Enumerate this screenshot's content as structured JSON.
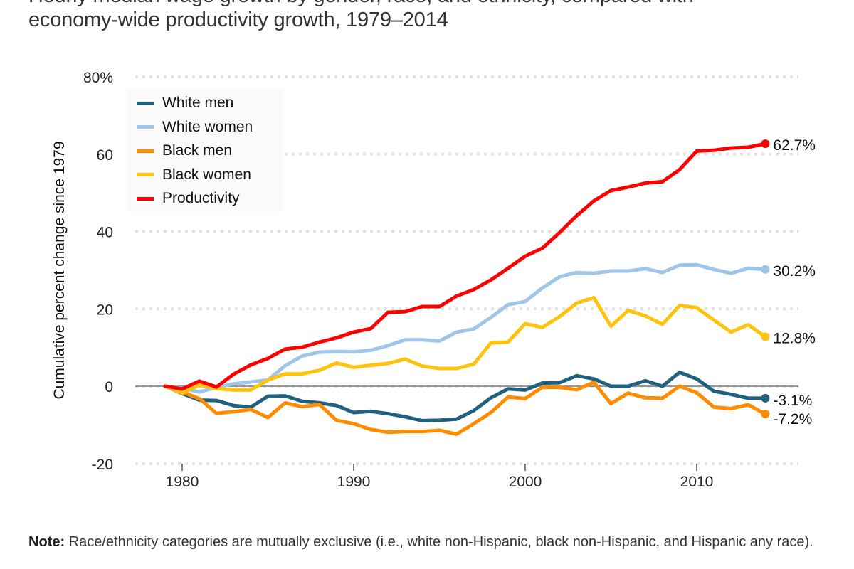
{
  "title": {
    "line1": "Hourly median wage growth by gender, race, and ethnicity, compared with",
    "line2": "economy-wide productivity growth, 1979–2014"
  },
  "note": {
    "label": "Note:",
    "text": " Race/ethnicity categories are mutually exclusive (i.e., white non-Hispanic, black non-Hispanic, and Hispanic any race)."
  },
  "chart_data": {
    "type": "line",
    "title": "Hourly median wage growth by gender, race, and ethnicity, compared with economy-wide productivity growth, 1979–2014",
    "xlabel": "",
    "ylabel": "Cumulative percent change since 1979",
    "xlim": [
      1977,
      2016.5
    ],
    "ylim": [
      -20,
      80
    ],
    "x_ticks": [
      1980,
      1990,
      2000,
      2010
    ],
    "y_ticks": [
      80,
      60,
      40,
      20,
      0,
      -20
    ],
    "y_tick_labels": [
      "80%",
      "60",
      "40",
      "20",
      "0",
      "-20"
    ],
    "grid": "horizontal-dotted",
    "legend_position": "top-left",
    "x": [
      1979,
      1980,
      1981,
      1982,
      1983,
      1984,
      1985,
      1986,
      1987,
      1988,
      1989,
      1990,
      1991,
      1992,
      1993,
      1994,
      1995,
      1996,
      1997,
      1998,
      1999,
      2000,
      2001,
      2002,
      2003,
      2004,
      2005,
      2006,
      2007,
      2008,
      2009,
      2010,
      2011,
      2012,
      2013,
      2014
    ],
    "series": [
      {
        "name": "White men",
        "color": "#22607f",
        "end_label": "-3.1%",
        "values": [
          0,
          -1.9,
          -3.6,
          -3.7,
          -5.0,
          -5.4,
          -2.6,
          -2.5,
          -3.9,
          -4.3,
          -5.0,
          -6.8,
          -6.5,
          -7.1,
          -7.9,
          -8.9,
          -8.8,
          -8.5,
          -6.3,
          -3.0,
          -0.7,
          -1.0,
          0.8,
          0.9,
          2.7,
          1.9,
          0.0,
          0.0,
          1.4,
          0.0,
          3.6,
          1.9,
          -1.3,
          -2.1,
          -3.1,
          -3.1
        ]
      },
      {
        "name": "White women",
        "color": "#9fc5e8",
        "end_label": "30.2%",
        "values": [
          0,
          -0.5,
          -1.5,
          -0.3,
          0.6,
          1.1,
          1.6,
          5.3,
          7.8,
          8.8,
          9.0,
          8.9,
          9.3,
          10.5,
          12.0,
          12.0,
          11.7,
          14.0,
          14.8,
          17.8,
          21.1,
          21.9,
          25.4,
          28.3,
          29.4,
          29.2,
          29.8,
          29.8,
          30.4,
          29.4,
          31.3,
          31.4,
          30.2,
          29.2,
          30.5,
          30.2
        ]
      },
      {
        "name": "Black men",
        "color": "#ff8c00",
        "end_label": "-7.2%",
        "values": [
          0,
          -1.5,
          -3.2,
          -7.0,
          -6.6,
          -6.0,
          -8.1,
          -4.3,
          -5.3,
          -4.7,
          -8.8,
          -9.7,
          -11.2,
          -11.9,
          -11.7,
          -11.7,
          -11.4,
          -12.4,
          -9.7,
          -6.8,
          -2.8,
          -3.2,
          -0.3,
          -0.3,
          -0.9,
          1.0,
          -4.5,
          -1.8,
          -3.0,
          -3.1,
          0.0,
          -1.7,
          -5.4,
          -5.8,
          -4.8,
          -7.2
        ]
      },
      {
        "name": "Black women",
        "color": "#ffc20e",
        "end_label": "12.8%",
        "values": [
          0,
          -1.8,
          0.3,
          -0.6,
          -1.0,
          -1.0,
          1.6,
          3.2,
          3.2,
          4.1,
          6.0,
          4.9,
          5.4,
          5.9,
          7.0,
          5.2,
          4.6,
          4.6,
          5.7,
          11.2,
          11.4,
          16.2,
          15.2,
          18.0,
          21.5,
          22.9,
          15.5,
          19.6,
          18.2,
          16.0,
          20.9,
          20.3,
          17.1,
          14.0,
          15.9,
          12.8
        ]
      },
      {
        "name": "Productivity",
        "color": "#ff0000",
        "end_label": "62.7%",
        "values": [
          0,
          -0.7,
          1.3,
          -0.2,
          3.1,
          5.5,
          7.2,
          9.6,
          10.1,
          11.4,
          12.5,
          14.0,
          14.9,
          19.1,
          19.3,
          20.6,
          20.6,
          23.3,
          25.0,
          27.5,
          30.5,
          33.6,
          35.7,
          39.7,
          44.1,
          47.9,
          50.6,
          51.5,
          52.5,
          52.9,
          56.0,
          60.8,
          61.0,
          61.6,
          61.8,
          62.7
        ]
      }
    ]
  }
}
